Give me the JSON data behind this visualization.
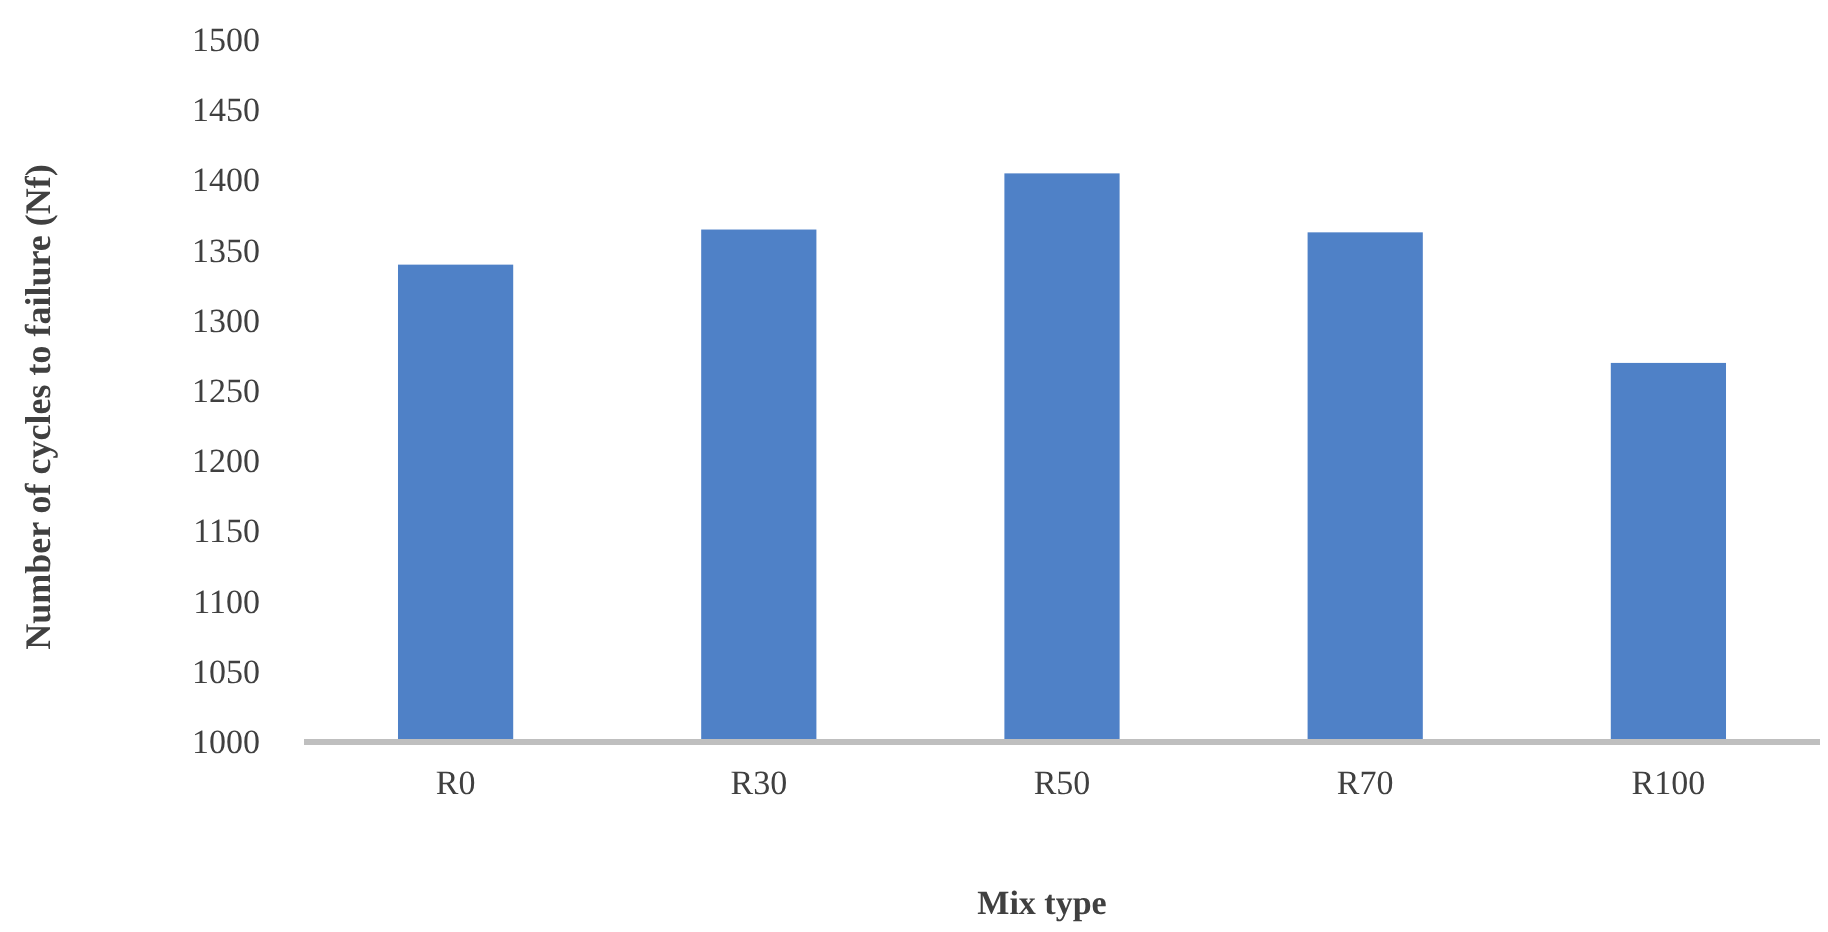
{
  "chart_data": {
    "type": "bar",
    "xlabel": "Mix type",
    "ylabel": "Number of cycles to failure (Nf)",
    "categories": [
      "R0",
      "R30",
      "R50",
      "R70",
      "R100"
    ],
    "values": [
      1340,
      1365,
      1405,
      1363,
      1270
    ],
    "color": "#4f81c7",
    "ylim": [
      1000,
      1500
    ],
    "yticks": [
      1000,
      1050,
      1100,
      1150,
      1200,
      1250,
      1300,
      1350,
      1400,
      1450,
      1500
    ],
    "grid": false
  }
}
